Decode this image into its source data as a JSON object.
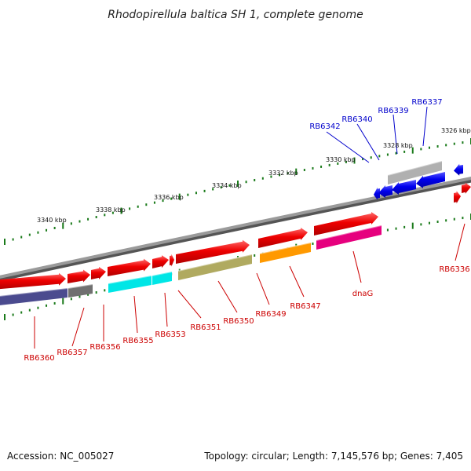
{
  "title": "Rhodopirellula baltica SH 1, complete genome",
  "footer": {
    "accession": "Accession: NC_005027",
    "summary": "Topology: circular; Length: 7,145,576 bp; Genes: 7,405"
  },
  "colors": {
    "backbone": "#8c8c8c",
    "tick": "#1a7a1a",
    "label_red": "#cc0000",
    "label_blue": "#0000cc"
  },
  "ticks": [
    "3340 kbp",
    "3338 kbp",
    "3336 kbp",
    "3334 kbp",
    "3332 kbp",
    "3330 kbp",
    "3328 kbp",
    "3326 kbp"
  ],
  "genes": [
    {
      "name": "RB6360",
      "strand": "forward",
      "color": "#ff0000",
      "cog_color": "#4b4b8f"
    },
    {
      "name": "RB6357",
      "strand": "forward",
      "color": "#ff0000",
      "cog_color": "#707070"
    },
    {
      "name": "RB6356",
      "strand": "forward",
      "color": "#ff0000",
      "cog_color": ""
    },
    {
      "name": "RB6355",
      "strand": "forward",
      "color": "#ff0000",
      "cog_color": "#00e6e6"
    },
    {
      "name": "RB6353",
      "strand": "forward",
      "color": "#ff0000",
      "cog_color": "#00e6e6"
    },
    {
      "name": "RB6351",
      "strand": "forward",
      "color": "#ff0000",
      "cog_color": ""
    },
    {
      "name": "RB6350",
      "strand": "forward",
      "color": "#ff0000",
      "cog_color": "#b0aa60"
    },
    {
      "name": "RB6349",
      "strand": "forward",
      "color": "#ff0000",
      "cog_color": ""
    },
    {
      "name": "RB6347",
      "strand": "forward",
      "color": "#ff0000",
      "cog_color": "#ff9900"
    },
    {
      "name": "dnaG",
      "strand": "forward",
      "color": "#ff0000",
      "cog_color": "#e6007e"
    },
    {
      "name": "RB6342",
      "strand": "reverse",
      "color": "#0000ff",
      "cog_color": ""
    },
    {
      "name": "RB6340",
      "strand": "reverse",
      "color": "#0000ff",
      "cog_color": ""
    },
    {
      "name": "RB6339",
      "strand": "reverse",
      "color": "#0000ff",
      "cog_color": "#b0b0b0"
    },
    {
      "name": "RB6337",
      "strand": "reverse",
      "color": "#0000ff",
      "cog_color": ""
    },
    {
      "name": "RB6336",
      "strand": "forward",
      "color": "#ff0000",
      "cog_color": ""
    }
  ]
}
